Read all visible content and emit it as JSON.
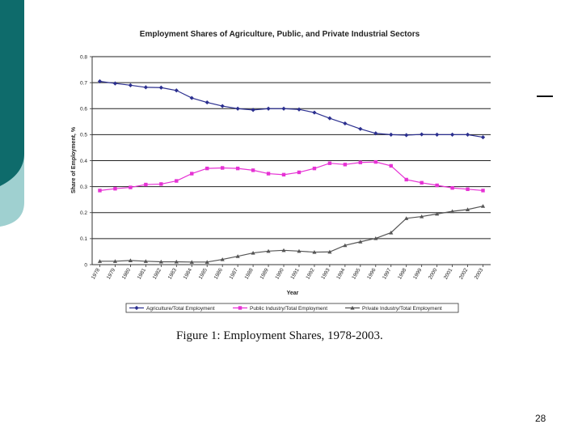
{
  "slide": {
    "caption": "Figure 1: Employment Shares, 1978-2003.",
    "page_number": "28",
    "accent_dark": "#0e6b6b",
    "accent_light": "#9fd0d0"
  },
  "chart_data": {
    "type": "line",
    "title": "Employment Shares of Agriculture, Public, and Private Industrial Sectors",
    "xlabel": "Year",
    "ylabel": "Share of Employment, %",
    "x": [
      1978,
      1979,
      1980,
      1981,
      1982,
      1983,
      1984,
      1985,
      1986,
      1987,
      1988,
      1989,
      1990,
      1991,
      1992,
      1993,
      1994,
      1995,
      1996,
      1997,
      1998,
      1999,
      2000,
      2001,
      2002,
      2003
    ],
    "yticks": [
      "0",
      "0.1",
      "0.2",
      "0.3",
      "0.4",
      "0.5",
      "0.6",
      "0.7",
      "0.8"
    ],
    "ylim": [
      0,
      0.8
    ],
    "grid": "horizontal",
    "legend_position": "bottom",
    "series": [
      {
        "name": "Agriculture/Total Employment",
        "color": "#2b2f8f",
        "marker": "diamond",
        "values": [
          0.705,
          0.697,
          0.69,
          0.682,
          0.681,
          0.67,
          0.641,
          0.624,
          0.61,
          0.6,
          0.595,
          0.6,
          0.6,
          0.597,
          0.585,
          0.563,
          0.543,
          0.522,
          0.505,
          0.5,
          0.498,
          0.501,
          0.5,
          0.5,
          0.5,
          0.49
        ]
      },
      {
        "name": "Public Industry/Total Employment",
        "color": "#e632d4",
        "marker": "square",
        "values": [
          0.285,
          0.292,
          0.297,
          0.308,
          0.31,
          0.322,
          0.35,
          0.37,
          0.372,
          0.37,
          0.363,
          0.35,
          0.346,
          0.355,
          0.37,
          0.39,
          0.385,
          0.393,
          0.395,
          0.38,
          0.327,
          0.315,
          0.305,
          0.295,
          0.29,
          0.285
        ]
      },
      {
        "name": "Private Industry/Total Employment",
        "color": "#555555",
        "marker": "triangle",
        "values": [
          0.013,
          0.013,
          0.016,
          0.013,
          0.011,
          0.011,
          0.01,
          0.01,
          0.02,
          0.032,
          0.045,
          0.052,
          0.055,
          0.052,
          0.048,
          0.049,
          0.074,
          0.088,
          0.101,
          0.123,
          0.178,
          0.185,
          0.195,
          0.205,
          0.212,
          0.225
        ]
      }
    ]
  }
}
